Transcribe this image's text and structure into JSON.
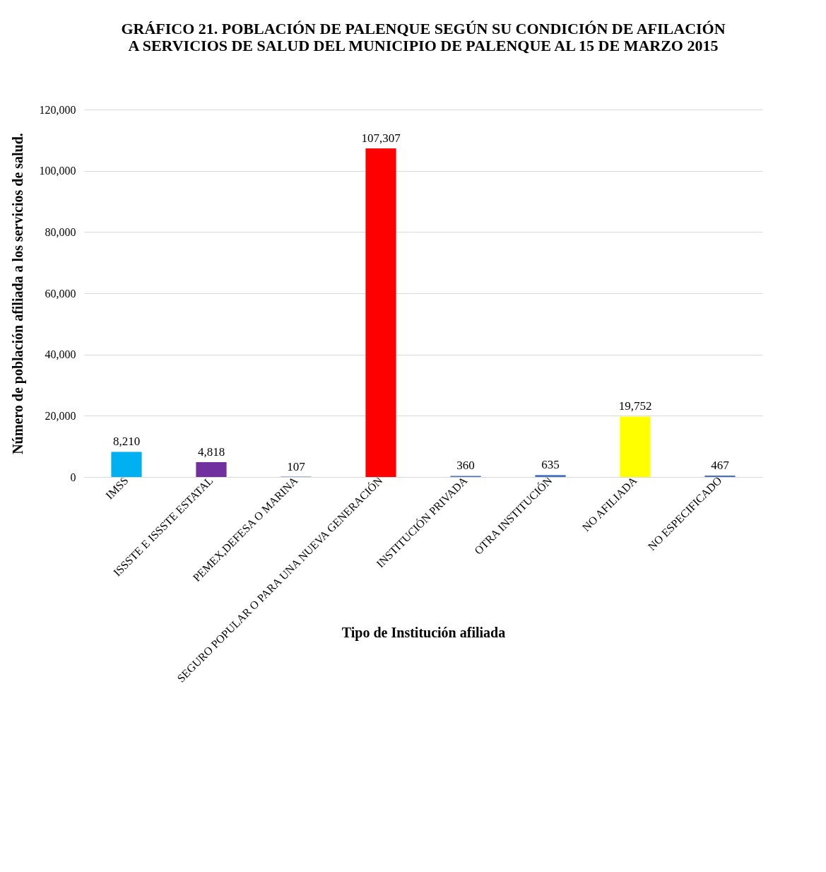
{
  "chart_data": {
    "type": "bar",
    "title": "GRÁFICO 21. POBLACIÓN DE PALENQUE SEGÚN SU CONDICIÓN DE AFILACIÓN A SERVICIOS DE SALUD DEL MUNICIPIO DE PALENQUE AL 15 DE MARZO 2015",
    "xlabel": "Tipo de Institución afiliada",
    "ylabel": "Número de población afiliada a los servicios de salud.",
    "categories": [
      "IMSS",
      "ISSSTE E ISSSTE ESTATAL",
      "PEMEX,DEFESA O MARINA",
      "SEGURO POPULAR O PARA UNA NUEVA GENERACIÓN",
      "INSTITUCIÓN PRIVADA",
      "OTRA INSTITUCIÓN",
      "NO AFILIADA",
      "NO ESPECIFICADO"
    ],
    "values": [
      8210,
      4818,
      107,
      107307,
      360,
      635,
      19752,
      467
    ],
    "colors": [
      "#00b0f0",
      "#7030a0",
      "#4472c4",
      "#ff0000",
      "#4472c4",
      "#4472c4",
      "#ffff00",
      "#4472c4"
    ],
    "ylim": [
      0,
      120000
    ],
    "yticks": [
      {
        "value": 0,
        "label": "0"
      },
      {
        "value": 20000,
        "label": "20,000"
      },
      {
        "value": 40000,
        "label": "40,000"
      },
      {
        "value": 60000,
        "label": "60,000"
      },
      {
        "value": 80000,
        "label": "80,000"
      },
      {
        "value": 100000,
        "label": "100,000"
      },
      {
        "value": 120000,
        "label": "120,000"
      }
    ],
    "grid": "y",
    "value_labels": [
      "8,210",
      "4,818",
      "107",
      "107,307",
      "360",
      "635",
      "19,752",
      "467"
    ]
  }
}
